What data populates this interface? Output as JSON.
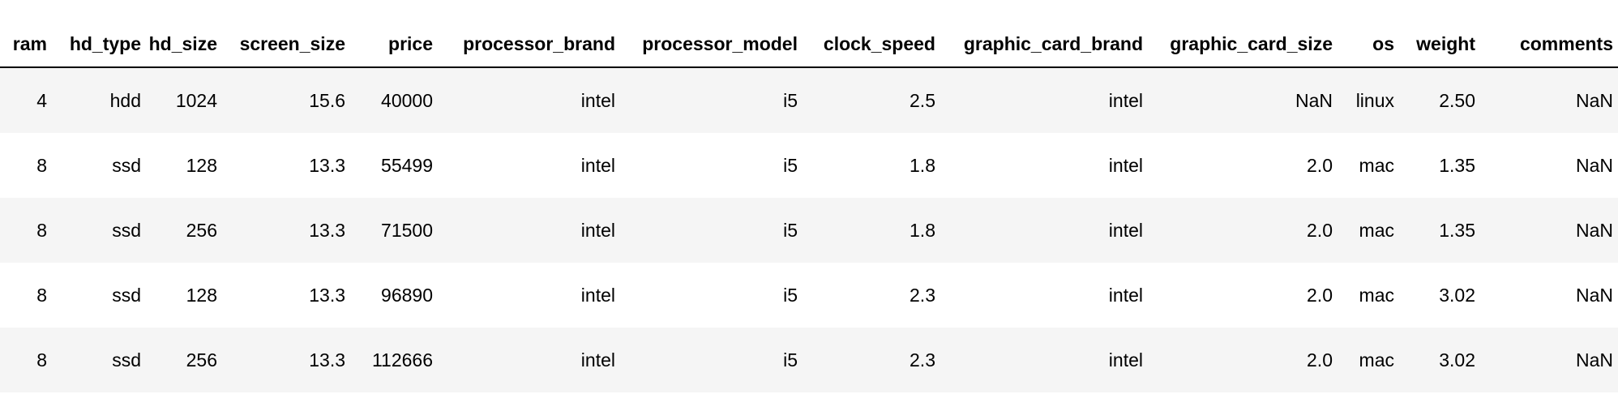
{
  "table": {
    "columns": [
      "ram",
      "hd_type",
      "hd_size",
      "screen_size",
      "price",
      "processor_brand",
      "processor_model",
      "clock_speed",
      "graphic_card_brand",
      "graphic_card_size",
      "os",
      "weight",
      "comments"
    ],
    "rows": [
      [
        "4",
        "hdd",
        "1024",
        "15.6",
        "40000",
        "intel",
        "i5",
        "2.5",
        "intel",
        "NaN",
        "linux",
        "2.50",
        "NaN"
      ],
      [
        "8",
        "ssd",
        "128",
        "13.3",
        "55499",
        "intel",
        "i5",
        "1.8",
        "intel",
        "2.0",
        "mac",
        "1.35",
        "NaN"
      ],
      [
        "8",
        "ssd",
        "256",
        "13.3",
        "71500",
        "intel",
        "i5",
        "1.8",
        "intel",
        "2.0",
        "mac",
        "1.35",
        "NaN"
      ],
      [
        "8",
        "ssd",
        "128",
        "13.3",
        "96890",
        "intel",
        "i5",
        "2.3",
        "intel",
        "2.0",
        "mac",
        "3.02",
        "NaN"
      ],
      [
        "8",
        "ssd",
        "256",
        "13.3",
        "112666",
        "intel",
        "i5",
        "2.3",
        "intel",
        "2.0",
        "mac",
        "3.02",
        "NaN"
      ]
    ]
  },
  "colors": {
    "stripe": "#f5f5f5",
    "background": "#ffffff",
    "header_rule": "#000000"
  }
}
